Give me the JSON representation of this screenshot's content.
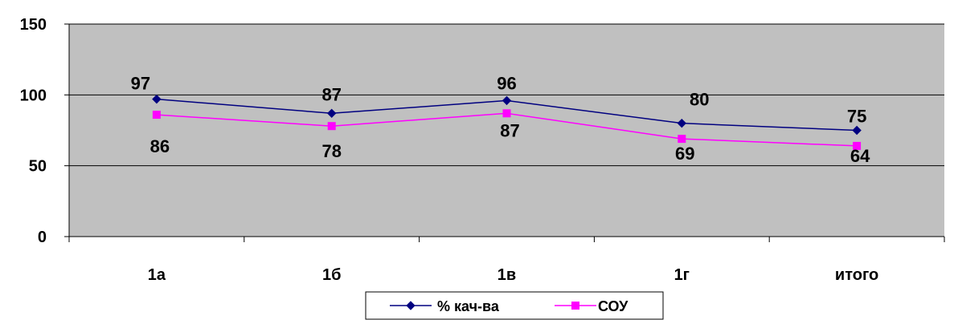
{
  "chart_data": {
    "type": "line",
    "categories": [
      "1а",
      "1б",
      "1в",
      "1г",
      "итого"
    ],
    "series": [
      {
        "name": "% кач-ва",
        "values": [
          97,
          87,
          96,
          80,
          75
        ],
        "color": "#000080",
        "marker": "diamond"
      },
      {
        "name": "СОУ",
        "values": [
          86,
          78,
          87,
          69,
          64
        ],
        "color": "#ff00ff",
        "marker": "square"
      }
    ],
    "yticks": [
      "0",
      "50",
      "100",
      "150"
    ],
    "ylim": [
      0,
      150
    ],
    "grid": true,
    "plot_background": "#c0c0c0",
    "legend_position": "bottom"
  }
}
